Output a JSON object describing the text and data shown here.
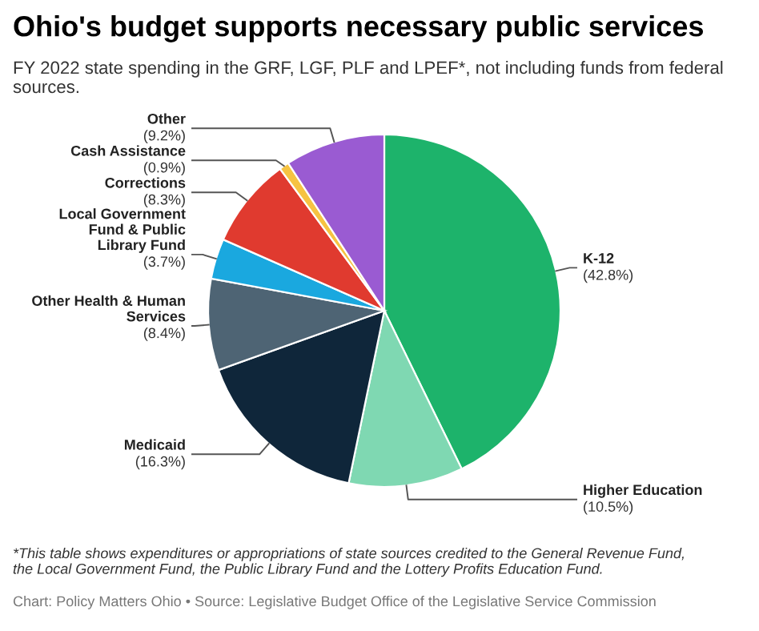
{
  "chart_data": {
    "type": "pie",
    "title": "Ohio's budget supports necessary public services",
    "subtitle": "FY 2022 state spending in the GRF, LGF, PLF and LPEF*, not including funds from federal sources.",
    "categories": [
      "K-12",
      "Higher Education",
      "Medicaid",
      "Other Health & Human Services",
      "Local Government Fund & Public Library Fund",
      "Corrections",
      "Cash Assistance",
      "Other"
    ],
    "values": [
      42.8,
      10.5,
      16.3,
      8.4,
      3.7,
      8.3,
      0.9,
      9.2
    ],
    "value_labels": [
      "(42.8%)",
      "(10.5%)",
      "(16.3%)",
      "(8.4%)",
      "(3.7%)",
      "(8.3%)",
      "(0.9%)",
      "(9.2%)"
    ],
    "colors": [
      "#1db36b",
      "#7fd8b2",
      "#0f263a",
      "#4e6474",
      "#1aa8df",
      "#e03a2f",
      "#f6c342",
      "#9a5bd2"
    ],
    "legend": false,
    "annotations": [
      "*This table shows expenditures or appropriations of state sources credited to the General Revenue Fund, the Local Government Fund, the Public Library Fund and the Lottery Profits Education Fund.",
      "Chart: Policy Matters Ohio • Source: Legislative Budget Office of the Legislative Service Commission"
    ]
  }
}
